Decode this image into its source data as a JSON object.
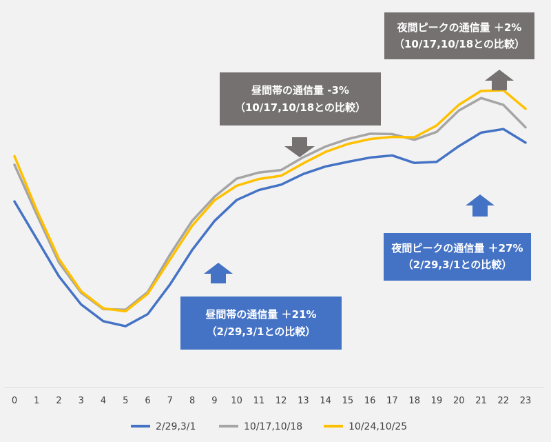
{
  "chart_data": {
    "type": "line",
    "x": [
      0,
      1,
      2,
      3,
      4,
      5,
      6,
      7,
      8,
      9,
      10,
      11,
      12,
      13,
      14,
      15,
      16,
      17,
      18,
      19,
      20,
      21,
      22,
      23
    ],
    "xlim": [
      0,
      23
    ],
    "ylim": [
      0,
      100
    ],
    "grid": false,
    "legend_position": "bottom",
    "series": [
      {
        "name": "2/29,3/1",
        "color": "#4472c4",
        "values": [
          52.2,
          41.7,
          31.2,
          23.3,
          18.6,
          17.2,
          20.6,
          28.9,
          38.6,
          46.7,
          52.6,
          55.4,
          56.9,
          59.9,
          62.0,
          63.3,
          64.5,
          65.1,
          63.0,
          63.3,
          67.7,
          71.5,
          72.5,
          68.7
        ]
      },
      {
        "name": "10/17,10/18",
        "color": "#a5a5a5",
        "values": [
          62.5,
          48.6,
          35.1,
          26.6,
          22.0,
          21.8,
          26.8,
          37.3,
          46.8,
          53.5,
          58.6,
          60.3,
          61.0,
          64.6,
          67.6,
          69.7,
          71.2,
          71.1,
          69.5,
          71.7,
          77.7,
          81.2,
          79.3,
          73.0
        ]
      },
      {
        "name": "10/24,10/25",
        "color": "#ffc000",
        "values": [
          64.9,
          49.8,
          36.1,
          27.0,
          22.2,
          21.4,
          26.3,
          35.9,
          45.4,
          52.5,
          56.6,
          58.5,
          59.4,
          62.9,
          66.1,
          68.3,
          69.7,
          70.3,
          70.2,
          73.5,
          79.3,
          83.2,
          83.4,
          78.2
        ]
      }
    ],
    "annotations": [
      {
        "text_line1": "昼間帯の通信量 ＋21%",
        "text_line2": "（2/29,3/1との比較）",
        "color": "#4472c4",
        "arrow": "up"
      },
      {
        "text_line1": "夜間ピークの通信量 ＋27%",
        "text_line2": "（2/29,3/1との比較）",
        "color": "#4472c4",
        "arrow": "up"
      },
      {
        "text_line1": "昼間帯の通信量 -3%",
        "text_line2": "（10/17,10/18との比較）",
        "color": "#767171",
        "arrow": "down"
      },
      {
        "text_line1": "夜間ピークの通信量 ＋2%",
        "text_line2": "（10/17,10/18との比較）",
        "color": "#767171",
        "arrow": "up"
      }
    ]
  }
}
